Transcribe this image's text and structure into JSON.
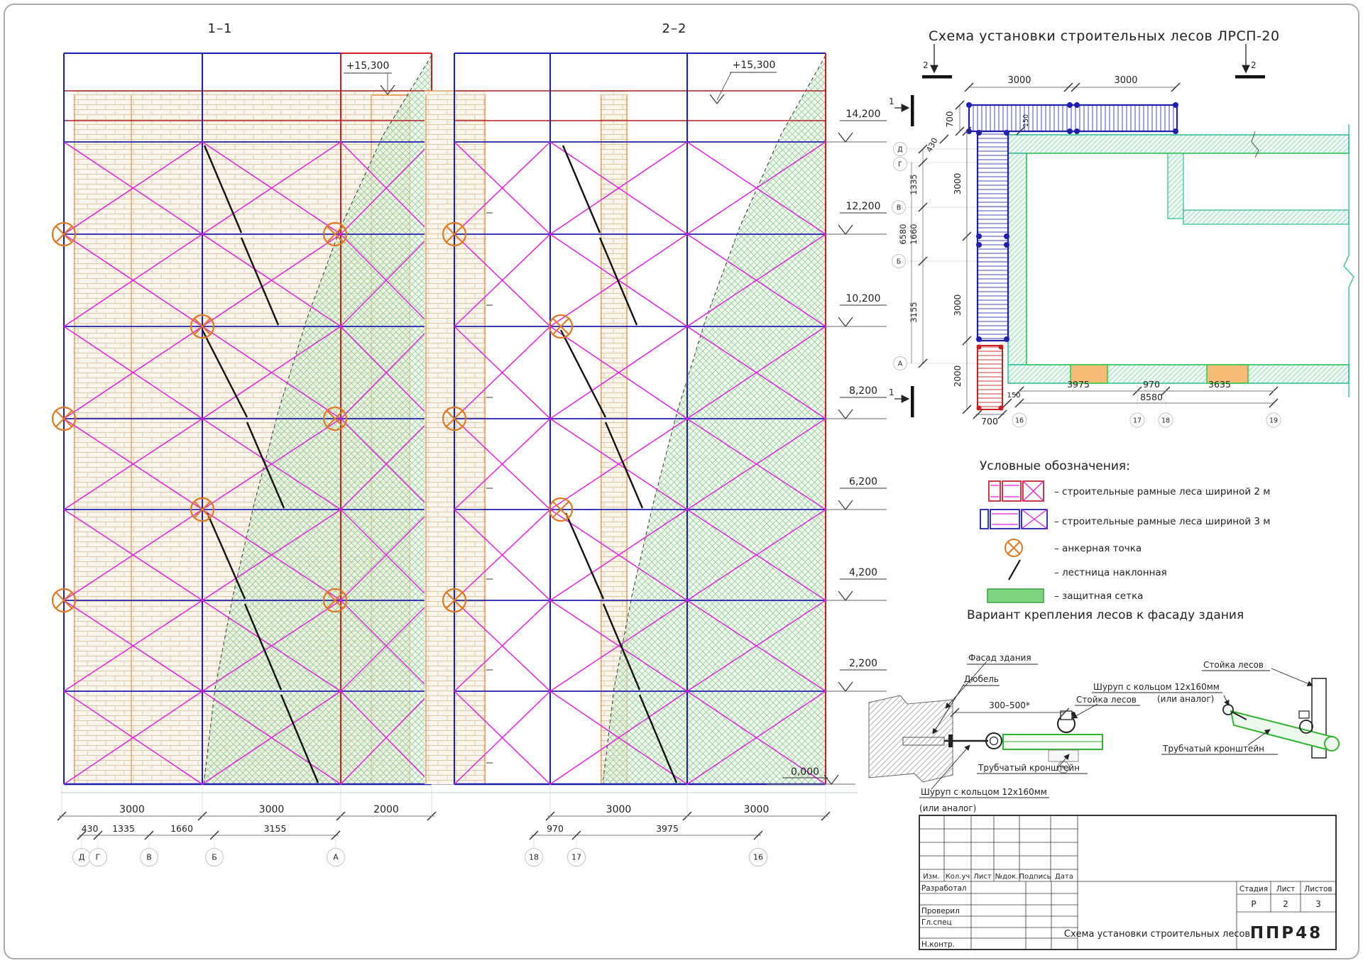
{
  "page": {
    "section1": "1–1",
    "section2": "2–2",
    "plan_title": "Схема установки строительных лесов ЛРСП-20"
  },
  "elevations": {
    "top_mark": "+15,300",
    "levels": [
      "14,200",
      "12,200",
      "10,200",
      "8,200",
      "6,200",
      "4,200",
      "2,200",
      "0,000"
    ],
    "e1": {
      "dims1": [
        "3000",
        "3000",
        "2000"
      ],
      "dims2": [
        "430",
        "1335",
        "1660",
        "3155"
      ],
      "axes": [
        "Д",
        "Г",
        "В",
        "Б",
        "А"
      ]
    },
    "e2": {
      "dims1": [
        "3000",
        "3000"
      ],
      "dims2": [
        "970",
        "3975"
      ],
      "axes": [
        "18",
        "17",
        "16"
      ]
    }
  },
  "plan": {
    "dims_top": [
      "3000",
      "3000"
    ],
    "dim_700_top": "700",
    "dim_430": "430",
    "dim_150_top": "150",
    "dims_left_axis": [
      "1335",
      "1660",
      "3155"
    ],
    "dim_6580": "6580",
    "dims_left_scaffold": [
      "3000",
      "3000"
    ],
    "dim_2000": "2000",
    "dim_150": "150",
    "dim_700": "700",
    "dims_bottom": [
      "3975",
      "970",
      "3635"
    ],
    "dim_8580": "8580",
    "axes_left": [
      "Д",
      "Г",
      "В",
      "Б",
      "А"
    ],
    "axes_bottom": [
      "16",
      "17",
      "18",
      "19"
    ],
    "marker1": "1",
    "marker2": "2"
  },
  "legend": {
    "title": "Условные обозначения:",
    "items": [
      {
        "symbol": "scaffold-frame-2m-icon",
        "text": "– строительные рамные леса шириной 2 м"
      },
      {
        "symbol": "scaffold-frame-3m-icon",
        "text": "– строительные рамные леса шириной 3 м"
      },
      {
        "symbol": "anchor-point-icon",
        "text": "– анкерная точка"
      },
      {
        "symbol": "inclined-ladder-icon",
        "text": "– лестница наклонная"
      },
      {
        "symbol": "protective-mesh-icon",
        "text": "– защитная сетка"
      }
    ]
  },
  "details": {
    "title": "Вариант крепления лесов к фасаду здания",
    "left": {
      "facade": "Фасад здания",
      "dowel": "Дюбель",
      "dim": "300–500*",
      "post": "Стойка лесов",
      "bracket": "Трубчатый кронштейн",
      "screw": "Шуруп с кольцом 12х160мм",
      "screw2": "(или аналог)"
    },
    "right": {
      "post": "Стойка лесов",
      "screw": "Шуруп с кольцом 12х160мм",
      "screw2": "(или аналог)",
      "bracket": "Трубчатый кронштейн"
    }
  },
  "titleblock": {
    "header_cols": [
      "Изм.",
      "Кол.уч",
      "Лист",
      "№док.",
      "Подпись",
      "Дата"
    ],
    "roles": [
      "Разработал",
      "Проверил",
      "Гл.спец",
      "Н.контр."
    ],
    "doc_name": "Схема установки строительных лесов",
    "stage_cols": [
      "Стадия",
      "Лист",
      "Листов"
    ],
    "stage_vals": [
      "Р",
      "2",
      "3"
    ],
    "logo": "ППР48"
  },
  "colors": {
    "frame_blue": "#2020b0",
    "frame_red": "#cc2020",
    "dark_red": "#b02020",
    "brace_magenta": "#e322e3",
    "anchor_orange": "#e07820",
    "brick_line": "#dbc9a4",
    "mesh_green": "#7cc87c",
    "wall_teal": "#35c09a",
    "bright_green": "#2ecc40",
    "window_orange": "#f7bd77",
    "legend_green": "#7fd47f",
    "detail_green": "#2db52d",
    "logo_green": "#2faa4a"
  }
}
